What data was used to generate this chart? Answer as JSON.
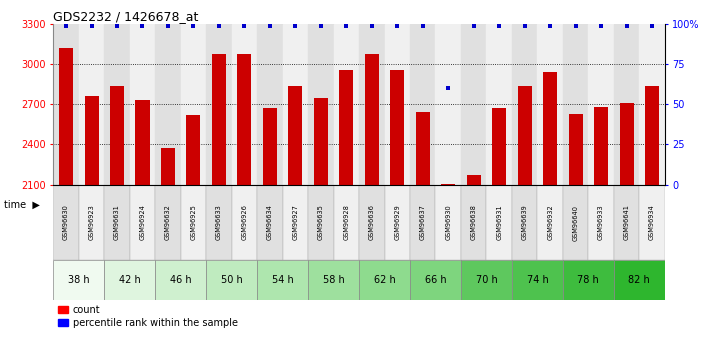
{
  "title": "GDS2232 / 1426678_at",
  "samples": [
    "GSM96630",
    "GSM96923",
    "GSM96631",
    "GSM96924",
    "GSM96632",
    "GSM96925",
    "GSM96633",
    "GSM96926",
    "GSM96634",
    "GSM96927",
    "GSM96635",
    "GSM96928",
    "GSM96636",
    "GSM96929",
    "GSM96637",
    "GSM96930",
    "GSM96638",
    "GSM96931",
    "GSM96639",
    "GSM96932",
    "GSM96640",
    "GSM96933",
    "GSM96641",
    "GSM96934"
  ],
  "counts": [
    3120,
    2760,
    2840,
    2730,
    2370,
    2620,
    3080,
    3080,
    2670,
    2840,
    2750,
    2960,
    3080,
    2960,
    2640,
    2105,
    2175,
    2670,
    2840,
    2940,
    2630,
    2680,
    2710,
    2840
  ],
  "percentiles": [
    99,
    99,
    99,
    99,
    99,
    99,
    99,
    99,
    99,
    99,
    99,
    99,
    99,
    99,
    99,
    60,
    99,
    99,
    99,
    99,
    99,
    99,
    99,
    99
  ],
  "time_groups": [
    {
      "label": "38 h",
      "indices": [
        0,
        1
      ]
    },
    {
      "label": "42 h",
      "indices": [
        2,
        3
      ]
    },
    {
      "label": "46 h",
      "indices": [
        4,
        5
      ]
    },
    {
      "label": "50 h",
      "indices": [
        6,
        7
      ]
    },
    {
      "label": "54 h",
      "indices": [
        8,
        9
      ]
    },
    {
      "label": "58 h",
      "indices": [
        10,
        11
      ]
    },
    {
      "label": "62 h",
      "indices": [
        12,
        13
      ]
    },
    {
      "label": "66 h",
      "indices": [
        14,
        15
      ]
    },
    {
      "label": "70 h",
      "indices": [
        16,
        17
      ]
    },
    {
      "label": "74 h",
      "indices": [
        18,
        19
      ]
    },
    {
      "label": "78 h",
      "indices": [
        20,
        21
      ]
    },
    {
      "label": "82 h",
      "indices": [
        22,
        23
      ]
    }
  ],
  "group_colors": [
    "#f0faf0",
    "#dff5df",
    "#cff0cf",
    "#bfebbf",
    "#aee6ae",
    "#9ee09e",
    "#8edb8e",
    "#7ed57e",
    "#5ec85e",
    "#4ec24e",
    "#3ebc3e",
    "#2eb62e"
  ],
  "sample_bg_colors": [
    "#e0e0e0",
    "#f0f0f0"
  ],
  "bar_color": "#cc0000",
  "dot_color": "#0000cc",
  "ylim_left": [
    2100,
    3300
  ],
  "ylim_right": [
    0,
    100
  ],
  "yticks_left": [
    2100,
    2400,
    2700,
    3000,
    3300
  ],
  "yticks_right": [
    0,
    25,
    50,
    75,
    100
  ],
  "grid_lines": [
    2400,
    2700,
    3000
  ],
  "bar_width": 0.55,
  "background_color": "#ffffff"
}
